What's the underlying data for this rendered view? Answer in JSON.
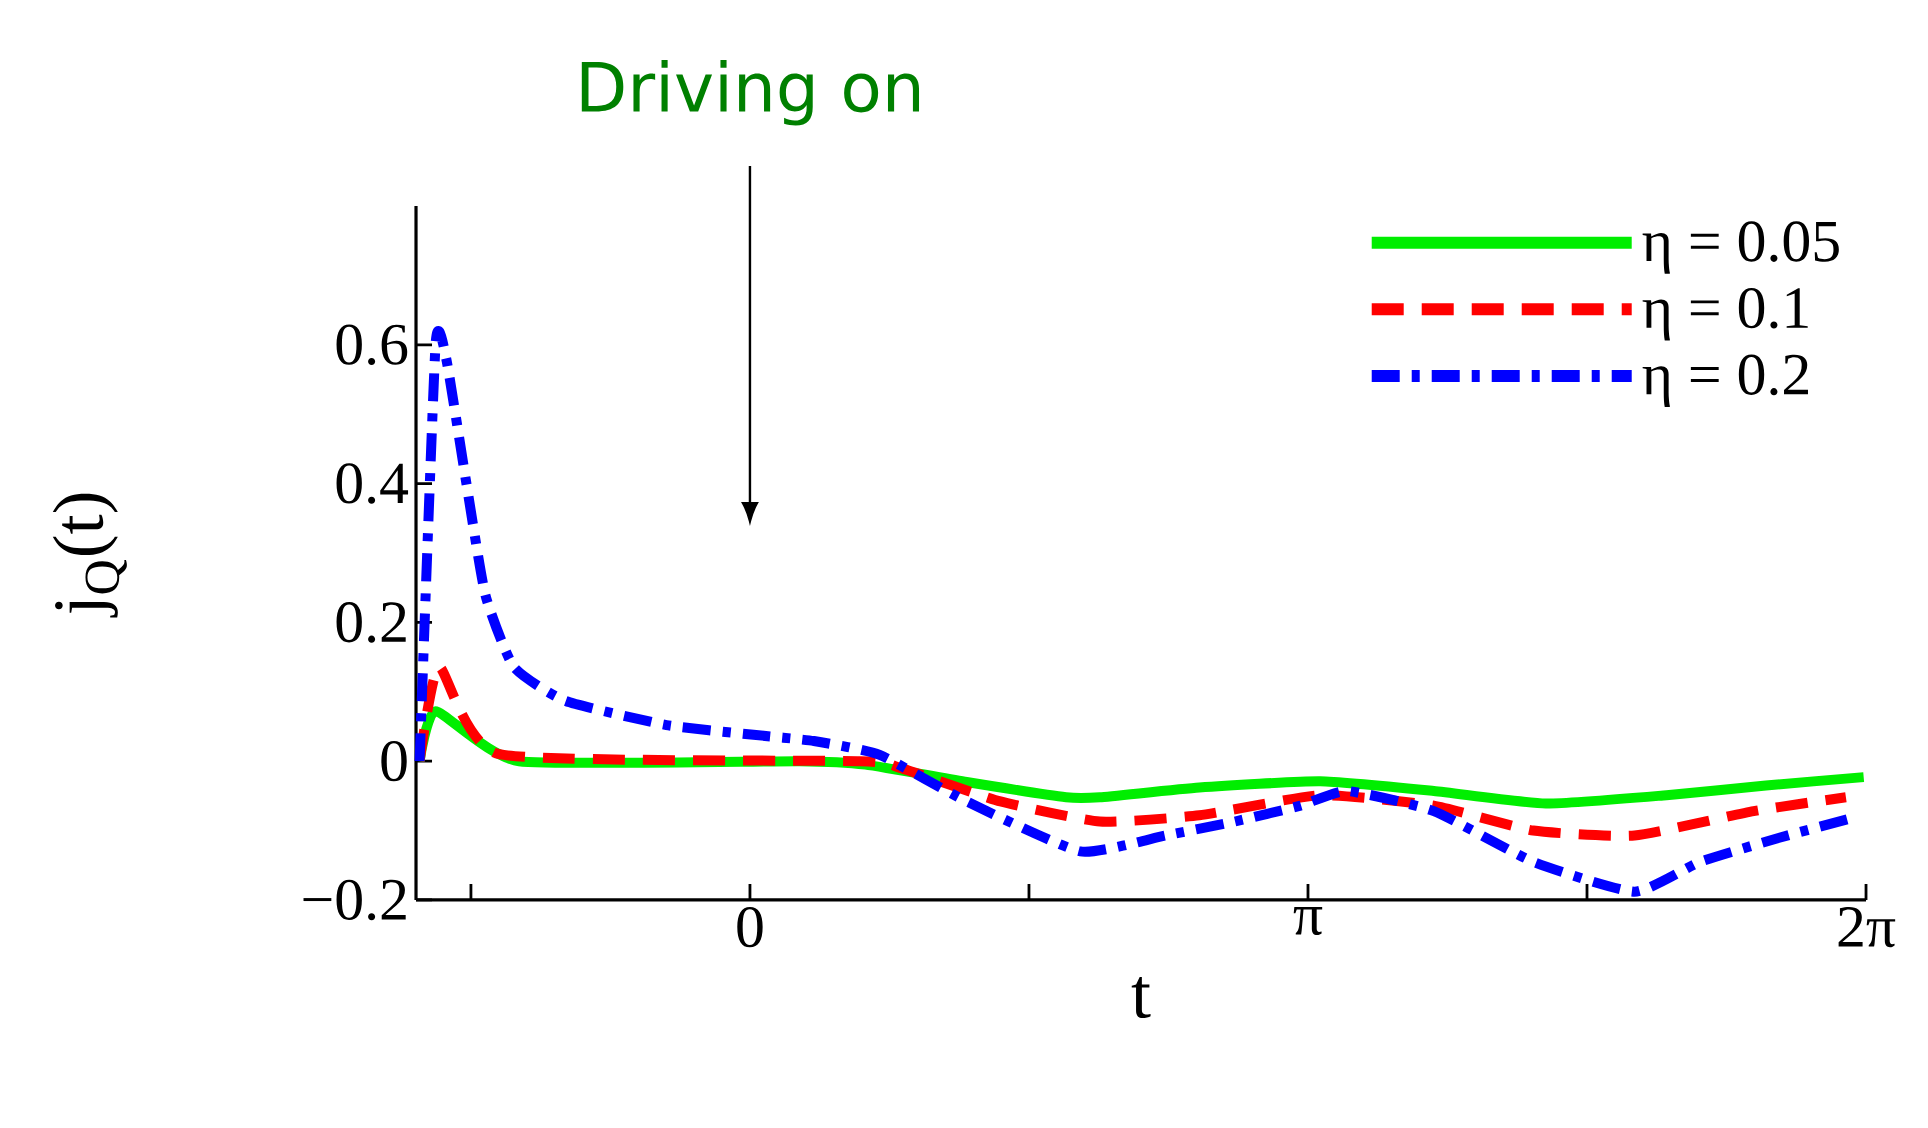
{
  "chart_data": {
    "type": "line",
    "xlabel": "t",
    "ylabel": "j$_{Q}$(t)",
    "xlim": [
      -1.88,
      6.2832
    ],
    "ylim": [
      -0.2,
      0.8
    ],
    "xticks": [
      {
        "value": -1.5708,
        "label": null
      },
      0,
      {
        "value": 1.5708,
        "label": null
      },
      {
        "value": 3.1416,
        "label": "π"
      },
      {
        "value": 4.7124,
        "label": null
      },
      {
        "value": 6.2832,
        "label": "2π"
      }
    ],
    "yticks": [
      {
        "value": -0.2,
        "label": "−0.2"
      },
      0,
      0.2,
      0.4,
      0.6
    ],
    "grid": false,
    "legend": "top right",
    "annotations": [
      "Driving on"
    ],
    "series": [
      {
        "name": "η = 0.05",
        "color": "#00ee00",
        "line_style": "solid",
        "x": [
          -1.86,
          -1.77,
          -1.3,
          0.28,
          0.65,
          1.22,
          1.78,
          1.97,
          2.53,
          3.21,
          3.85,
          4.48,
          5.16,
          5.72,
          6.27
        ],
        "values": [
          0,
          0.072,
          0,
          0,
          -0.005,
          -0.03,
          -0.052,
          -0.052,
          -0.038,
          -0.029,
          -0.043,
          -0.061,
          -0.049,
          -0.035,
          -0.023
        ]
      },
      {
        "name": "η = 0.1",
        "color": "#ff0000",
        "line_style": "dashed",
        "x": [
          -1.86,
          -1.75,
          -1.41,
          0.62,
          0.85,
          1.41,
          1.97,
          2.53,
          3.21,
          3.85,
          4.41,
          4.98,
          5.65,
          6.17
        ],
        "values": [
          0,
          0.136,
          0.01,
          0,
          -0.01,
          -0.058,
          -0.087,
          -0.078,
          -0.049,
          -0.064,
          -0.1,
          -0.107,
          -0.072,
          -0.052
        ]
      },
      {
        "name": "η = 0.2",
        "color": "#0000ff",
        "line_style": "dashdot",
        "x": [
          -1.86,
          -1.77,
          -1.71,
          -1.6,
          -1.49,
          -1.33,
          -1.04,
          -0.47,
          0.02,
          0.36,
          0.73,
          1.22,
          1.86,
          2.34,
          2.73,
          3.1,
          3.36,
          3.85,
          4.41,
          4.98,
          5.35,
          5.8,
          6.22
        ],
        "values": [
          0,
          0.6,
          0.58,
          0.406,
          0.24,
          0.136,
          0.087,
          0.052,
          0.038,
          0.029,
          0.009,
          -0.058,
          -0.13,
          -0.107,
          -0.087,
          -0.064,
          -0.043,
          -0.072,
          -0.145,
          -0.188,
          -0.145,
          -0.11,
          -0.081
        ]
      }
    ]
  }
}
